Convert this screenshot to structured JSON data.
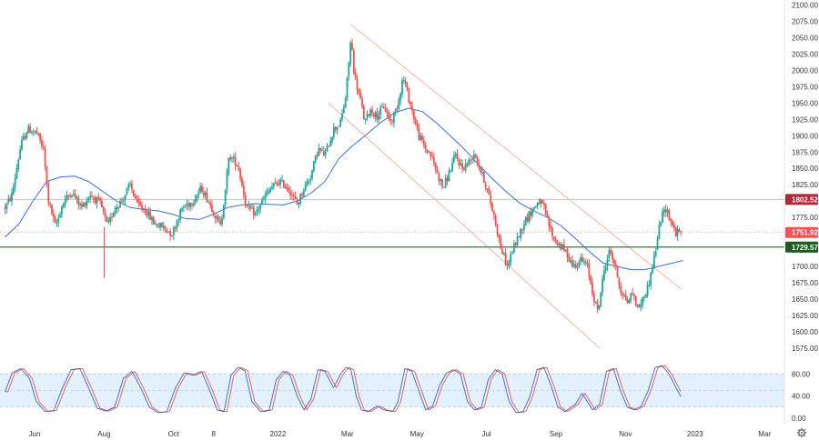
{
  "chart_data": {
    "type": "candlestick",
    "price_axis": {
      "ticks": [
        "2100.00",
        "2075.00",
        "2050.00",
        "2025.00",
        "2000.00",
        "1975.00",
        "1950.00",
        "1925.00",
        "1900.00",
        "1875.00",
        "1850.00",
        "1825.00",
        "1800.00",
        "1775.00",
        "1750.00",
        "1725.00",
        "1700.00",
        "1675.00",
        "1650.00",
        "1625.00",
        "1600.00",
        "1575.00"
      ],
      "ylim": [
        1565,
        2105
      ]
    },
    "osc_axis": {
      "ticks": [
        "80.00",
        "40.00",
        "0.00"
      ],
      "ylim": [
        0,
        100
      ],
      "band": [
        20,
        80
      ]
    },
    "time_axis": {
      "ticks": [
        {
          "label": "Jun",
          "t": 0.0
        },
        {
          "label": "Aug",
          "t": 2.0
        },
        {
          "label": "Oct",
          "t": 4.0
        },
        {
          "label": "8",
          "t": 5.15
        },
        {
          "label": "2022",
          "t": 7.0
        },
        {
          "label": "Mar",
          "t": 9.0
        },
        {
          "label": "May",
          "t": 11.0
        },
        {
          "label": "Jul",
          "t": 13.0
        },
        {
          "label": "Sep",
          "t": 15.0
        },
        {
          "label": "Nov",
          "t": 17.0
        },
        {
          "label": "2023",
          "t": 19.0
        },
        {
          "label": "Mar",
          "t": 21.0
        }
      ]
    },
    "price_labels": [
      {
        "text": "1802.52",
        "value": 1802.52,
        "color": "#b22833"
      },
      {
        "text": "1751.92",
        "value": 1751.92,
        "color": "#ef5350"
      },
      {
        "text": "1729.57",
        "value": 1729.57,
        "color": "#1b5e20"
      }
    ],
    "levels": {
      "resistance": 1802.52,
      "support": 1729.57,
      "last": 1751.92
    },
    "anchors": [
      [
        -0.9,
        1790
      ],
      [
        -0.7,
        1810
      ],
      [
        -0.45,
        1885
      ],
      [
        -0.25,
        1910
      ],
      [
        0.0,
        1905
      ],
      [
        0.2,
        1880
      ],
      [
        0.35,
        1800
      ],
      [
        0.55,
        1760
      ],
      [
        0.75,
        1795
      ],
      [
        1.0,
        1815
      ],
      [
        1.3,
        1790
      ],
      [
        1.55,
        1810
      ],
      [
        1.85,
        1795
      ],
      [
        2.05,
        1760
      ],
      [
        2.25,
        1790
      ],
      [
        2.45,
        1800
      ],
      [
        2.7,
        1825
      ],
      [
        2.9,
        1795
      ],
      [
        3.15,
        1785
      ],
      [
        3.4,
        1765
      ],
      [
        3.65,
        1760
      ],
      [
        3.9,
        1750
      ],
      [
        4.2,
        1790
      ],
      [
        4.5,
        1800
      ],
      [
        4.75,
        1820
      ],
      [
        5.0,
        1795
      ],
      [
        5.3,
        1760
      ],
      [
        5.55,
        1870
      ],
      [
        5.8,
        1855
      ],
      [
        6.05,
        1790
      ],
      [
        6.3,
        1780
      ],
      [
        6.5,
        1800
      ],
      [
        6.75,
        1820
      ],
      [
        7.0,
        1830
      ],
      [
        7.25,
        1820
      ],
      [
        7.5,
        1795
      ],
      [
        7.7,
        1820
      ],
      [
        7.9,
        1840
      ],
      [
        8.1,
        1880
      ],
      [
        8.3,
        1870
      ],
      [
        8.55,
        1910
      ],
      [
        8.75,
        1920
      ],
      [
        8.9,
        1960
      ],
      [
        9.05,
        2050
      ],
      [
        9.15,
        1990
      ],
      [
        9.3,
        1960
      ],
      [
        9.45,
        1920
      ],
      [
        9.6,
        1940
      ],
      [
        9.8,
        1930
      ],
      [
        10.0,
        1945
      ],
      [
        10.2,
        1920
      ],
      [
        10.4,
        1950
      ],
      [
        10.55,
        1990
      ],
      [
        10.7,
        1960
      ],
      [
        10.85,
        1930
      ],
      [
        11.0,
        1900
      ],
      [
        11.2,
        1880
      ],
      [
        11.35,
        1870
      ],
      [
        11.55,
        1840
      ],
      [
        11.7,
        1820
      ],
      [
        11.85,
        1840
      ],
      [
        12.05,
        1870
      ],
      [
        12.25,
        1850
      ],
      [
        12.45,
        1860
      ],
      [
        12.6,
        1875
      ],
      [
        12.75,
        1850
      ],
      [
        12.9,
        1830
      ],
      [
        13.05,
        1800
      ],
      [
        13.2,
        1770
      ],
      [
        13.35,
        1730
      ],
      [
        13.55,
        1700
      ],
      [
        13.7,
        1725
      ],
      [
        13.9,
        1750
      ],
      [
        14.05,
        1770
      ],
      [
        14.25,
        1785
      ],
      [
        14.45,
        1800
      ],
      [
        14.6,
        1790
      ],
      [
        14.7,
        1770
      ],
      [
        14.9,
        1740
      ],
      [
        15.1,
        1730
      ],
      [
        15.25,
        1720
      ],
      [
        15.45,
        1700
      ],
      [
        15.65,
        1710
      ],
      [
        15.85,
        1700
      ],
      [
        16.0,
        1660
      ],
      [
        16.15,
        1630
      ],
      [
        16.35,
        1700
      ],
      [
        16.5,
        1725
      ],
      [
        16.65,
        1700
      ],
      [
        16.8,
        1665
      ],
      [
        17.0,
        1645
      ],
      [
        17.15,
        1660
      ],
      [
        17.3,
        1635
      ],
      [
        17.45,
        1650
      ],
      [
        17.6,
        1670
      ],
      [
        17.8,
        1720
      ],
      [
        17.95,
        1770
      ],
      [
        18.1,
        1790
      ],
      [
        18.25,
        1770
      ],
      [
        18.4,
        1750
      ],
      [
        18.55,
        1755
      ]
    ],
    "ma_curve": [
      [
        -0.9,
        1745
      ],
      [
        -0.5,
        1765
      ],
      [
        -0.1,
        1800
      ],
      [
        0.3,
        1830
      ],
      [
        0.7,
        1837
      ],
      [
        1.1,
        1838
      ],
      [
        1.5,
        1830
      ],
      [
        1.9,
        1815
      ],
      [
        2.3,
        1800
      ],
      [
        2.7,
        1790
      ],
      [
        3.1,
        1787
      ],
      [
        3.5,
        1785
      ],
      [
        3.9,
        1780
      ],
      [
        4.3,
        1773
      ],
      [
        4.7,
        1772
      ],
      [
        5.1,
        1780
      ],
      [
        5.5,
        1790
      ],
      [
        5.9,
        1794
      ],
      [
        6.3,
        1796
      ],
      [
        6.7,
        1795
      ],
      [
        7.1,
        1794
      ],
      [
        7.5,
        1800
      ],
      [
        7.9,
        1812
      ],
      [
        8.3,
        1830
      ],
      [
        8.7,
        1865
      ],
      [
        9.1,
        1885
      ],
      [
        9.5,
        1902
      ],
      [
        9.9,
        1920
      ],
      [
        10.3,
        1935
      ],
      [
        10.7,
        1942
      ],
      [
        11.1,
        1937
      ],
      [
        11.5,
        1920
      ],
      [
        11.9,
        1900
      ],
      [
        12.3,
        1880
      ],
      [
        12.7,
        1857
      ],
      [
        13.1,
        1835
      ],
      [
        13.5,
        1815
      ],
      [
        13.9,
        1797
      ],
      [
        14.3,
        1785
      ],
      [
        14.7,
        1775
      ],
      [
        15.1,
        1762
      ],
      [
        15.5,
        1743
      ],
      [
        15.9,
        1723
      ],
      [
        16.3,
        1705
      ],
      [
        16.7,
        1700
      ],
      [
        17.1,
        1695
      ],
      [
        17.5,
        1695
      ],
      [
        17.9,
        1700
      ],
      [
        18.3,
        1705
      ],
      [
        18.6,
        1709
      ]
    ],
    "channel": {
      "upper": [
        [
          9.05,
          2070
        ],
        [
          18.55,
          1665
        ]
      ],
      "lower": [
        [
          8.4,
          1950
        ],
        [
          16.2,
          1575
        ]
      ]
    },
    "oscillator_anchors": [
      [
        -0.9,
        48
      ],
      [
        -0.7,
        82
      ],
      [
        -0.45,
        90
      ],
      [
        -0.2,
        72
      ],
      [
        0.0,
        30
      ],
      [
        0.25,
        12
      ],
      [
        0.5,
        14
      ],
      [
        0.75,
        55
      ],
      [
        1.0,
        88
      ],
      [
        1.25,
        90
      ],
      [
        1.5,
        55
      ],
      [
        1.75,
        18
      ],
      [
        2.0,
        13
      ],
      [
        2.25,
        20
      ],
      [
        2.5,
        72
      ],
      [
        2.75,
        85
      ],
      [
        3.0,
        55
      ],
      [
        3.25,
        20
      ],
      [
        3.5,
        10
      ],
      [
        3.75,
        12
      ],
      [
        4.0,
        55
      ],
      [
        4.25,
        82
      ],
      [
        4.5,
        78
      ],
      [
        4.75,
        85
      ],
      [
        5.0,
        48
      ],
      [
        5.2,
        15
      ],
      [
        5.4,
        12
      ],
      [
        5.6,
        78
      ],
      [
        5.8,
        92
      ],
      [
        6.0,
        86
      ],
      [
        6.2,
        30
      ],
      [
        6.45,
        12
      ],
      [
        6.7,
        15
      ],
      [
        6.9,
        70
      ],
      [
        7.1,
        85
      ],
      [
        7.3,
        78
      ],
      [
        7.5,
        40
      ],
      [
        7.7,
        15
      ],
      [
        7.9,
        35
      ],
      [
        8.1,
        88
      ],
      [
        8.3,
        85
      ],
      [
        8.55,
        55
      ],
      [
        8.75,
        80
      ],
      [
        8.9,
        92
      ],
      [
        9.05,
        88
      ],
      [
        9.2,
        40
      ],
      [
        9.35,
        15
      ],
      [
        9.55,
        12
      ],
      [
        9.8,
        22
      ],
      [
        10.0,
        15
      ],
      [
        10.25,
        12
      ],
      [
        10.4,
        30
      ],
      [
        10.6,
        90
      ],
      [
        10.8,
        85
      ],
      [
        11.0,
        50
      ],
      [
        11.2,
        15
      ],
      [
        11.4,
        22
      ],
      [
        11.6,
        60
      ],
      [
        11.8,
        82
      ],
      [
        12.0,
        88
      ],
      [
        12.2,
        80
      ],
      [
        12.4,
        30
      ],
      [
        12.6,
        15
      ],
      [
        12.8,
        20
      ],
      [
        13.0,
        70
      ],
      [
        13.2,
        88
      ],
      [
        13.4,
        80
      ],
      [
        13.6,
        30
      ],
      [
        13.8,
        10
      ],
      [
        14.0,
        12
      ],
      [
        14.2,
        40
      ],
      [
        14.4,
        88
      ],
      [
        14.6,
        92
      ],
      [
        14.8,
        60
      ],
      [
        15.0,
        20
      ],
      [
        15.2,
        12
      ],
      [
        15.5,
        25
      ],
      [
        15.7,
        45
      ],
      [
        15.85,
        30
      ],
      [
        16.0,
        15
      ],
      [
        16.2,
        25
      ],
      [
        16.4,
        85
      ],
      [
        16.6,
        90
      ],
      [
        16.8,
        50
      ],
      [
        17.0,
        20
      ],
      [
        17.2,
        15
      ],
      [
        17.4,
        22
      ],
      [
        17.6,
        50
      ],
      [
        17.8,
        92
      ],
      [
        18.0,
        95
      ],
      [
        18.2,
        80
      ],
      [
        18.4,
        55
      ],
      [
        18.55,
        38
      ]
    ]
  }
}
